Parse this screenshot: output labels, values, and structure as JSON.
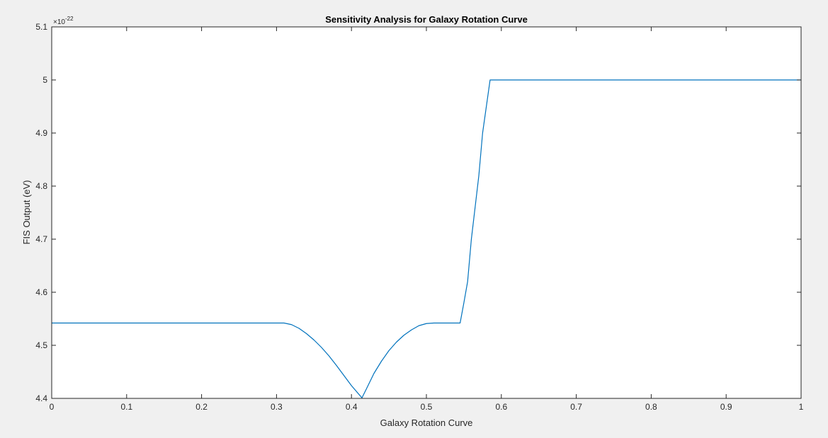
{
  "chart_data": {
    "type": "line",
    "title": "Sensitivity Analysis for Galaxy Rotation Curve",
    "xlabel": "Galaxy Rotation Curve",
    "ylabel": "FIS Output (eV)",
    "y_exponent_base": "×10",
    "y_exponent_power": "-22",
    "xlim": [
      0,
      1
    ],
    "ylim": [
      4.4,
      5.1
    ],
    "x_ticks": [
      0,
      0.1,
      0.2,
      0.3,
      0.4,
      0.5,
      0.6,
      0.7,
      0.8,
      0.9,
      1
    ],
    "x_tick_labels": [
      "0",
      "0.1",
      "0.2",
      "0.3",
      "0.4",
      "0.5",
      "0.6",
      "0.7",
      "0.8",
      "0.9",
      "1"
    ],
    "y_ticks": [
      4.4,
      4.5,
      4.6,
      4.7,
      4.8,
      4.9,
      5.0,
      5.1
    ],
    "y_tick_labels": [
      "4.4",
      "4.5",
      "4.6",
      "4.7",
      "4.8",
      "4.9",
      "5",
      "5.1"
    ],
    "grid": false,
    "line_color": "#0072bd",
    "series": [
      {
        "x": [
          0,
          0.1,
          0.2,
          0.3,
          0.31,
          0.32,
          0.33,
          0.34,
          0.35,
          0.36,
          0.37,
          0.38,
          0.39,
          0.4,
          0.414,
          0.42,
          0.43,
          0.44,
          0.45,
          0.46,
          0.47,
          0.48,
          0.49,
          0.5,
          0.51,
          0.52,
          0.53,
          0.545,
          0.55,
          0.555,
          0.56,
          0.57,
          0.575,
          0.58,
          0.585,
          0.6,
          0.7,
          0.8,
          0.9,
          1.0
        ],
        "y": [
          4.542,
          4.542,
          4.542,
          4.542,
          4.542,
          4.539,
          4.532,
          4.522,
          4.51,
          4.496,
          4.48,
          4.462,
          4.443,
          4.424,
          4.401,
          4.418,
          4.447,
          4.47,
          4.49,
          4.506,
          4.519,
          4.529,
          4.537,
          4.541,
          4.542,
          4.542,
          4.542,
          4.542,
          4.58,
          4.62,
          4.7,
          4.82,
          4.9,
          4.95,
          5.0,
          5.0,
          5.0,
          5.0,
          5.0,
          5.0
        ]
      }
    ]
  }
}
